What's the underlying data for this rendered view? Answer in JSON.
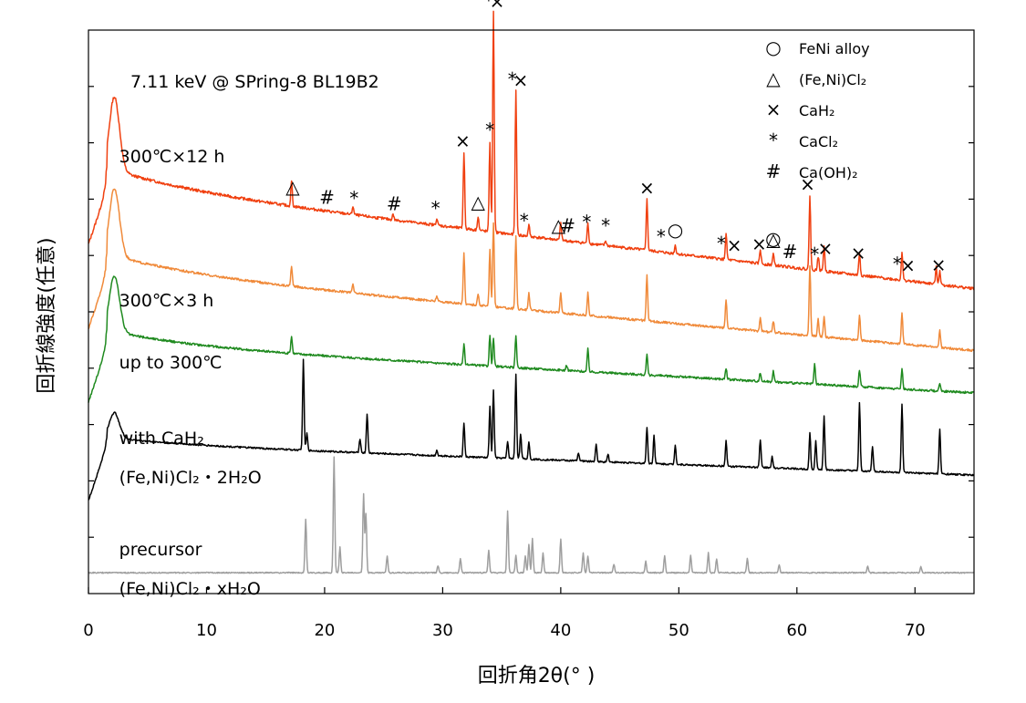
{
  "chart_data": {
    "type": "line",
    "source_note": "7.11 keV @ SPring-8 BL19B2",
    "xlabel": "回折角2θ(° )",
    "ylabel": "回折線強度(任意)",
    "xlim": [
      0,
      75
    ],
    "xticks": [
      0,
      10,
      20,
      30,
      40,
      50,
      60,
      70
    ],
    "yticks_unlabeled": 9,
    "grid": false,
    "legend": [
      {
        "symbol": "○",
        "label": "FeNi alloy"
      },
      {
        "symbol": "△",
        "label": "(Fe,Ni)Cl₂"
      },
      {
        "symbol": "×",
        "label": "CaH₂"
      },
      {
        "symbol": "*",
        "label": "CaCl₂"
      },
      {
        "symbol": "#",
        "label": "Ca(OH)₂"
      }
    ],
    "legend_position": "top-right",
    "series": [
      {
        "label_lines": [
          "300℃×12 h"
        ],
        "color": "#f04010",
        "baseline": 7.2,
        "slope": 0.0245,
        "hump": 1.3,
        "noise": 0.05,
        "peaks": [
          [
            17.2,
            0.45
          ],
          [
            22.4,
            0.15
          ],
          [
            25.8,
            0.1
          ],
          [
            29.5,
            0.12
          ],
          [
            31.8,
            1.35
          ],
          [
            33.0,
            0.25
          ],
          [
            34.0,
            1.6
          ],
          [
            34.3,
            3.9
          ],
          [
            36.2,
            2.55
          ],
          [
            37.3,
            0.2
          ],
          [
            40.0,
            0.3
          ],
          [
            42.3,
            0.35
          ],
          [
            43.8,
            0.08
          ],
          [
            47.3,
            0.9
          ],
          [
            49.7,
            0.15
          ],
          [
            54.0,
            0.45
          ],
          [
            56.9,
            0.25
          ],
          [
            58.0,
            0.2
          ],
          [
            61.1,
            1.3
          ],
          [
            61.8,
            0.25
          ],
          [
            62.3,
            0.45
          ],
          [
            65.3,
            0.4
          ],
          [
            68.9,
            0.5
          ],
          [
            71.8,
            0.3
          ],
          [
            72.1,
            0.25
          ]
        ]
      },
      {
        "label_lines": [
          "300℃×3 h"
        ],
        "color": "#f08a3a",
        "baseline": 5.7,
        "slope": 0.019,
        "hump": 1.2,
        "noise": 0.04,
        "peaks": [
          [
            17.2,
            0.35
          ],
          [
            22.4,
            0.15
          ],
          [
            29.5,
            0.1
          ],
          [
            31.8,
            0.9
          ],
          [
            33.0,
            0.2
          ],
          [
            34.0,
            1.0
          ],
          [
            34.3,
            1.5
          ],
          [
            36.2,
            1.3
          ],
          [
            37.3,
            0.3
          ],
          [
            40.0,
            0.35
          ],
          [
            42.3,
            0.4
          ],
          [
            47.3,
            0.8
          ],
          [
            54.0,
            0.5
          ],
          [
            56.9,
            0.25
          ],
          [
            58.0,
            0.2
          ],
          [
            61.1,
            1.25
          ],
          [
            61.8,
            0.3
          ],
          [
            62.3,
            0.35
          ],
          [
            65.3,
            0.45
          ],
          [
            68.9,
            0.55
          ],
          [
            72.1,
            0.3
          ]
        ]
      },
      {
        "label_lines": [
          "up to 300℃"
        ],
        "color": "#1f8a1f",
        "baseline": 4.4,
        "slope": 0.0115,
        "hump": 1.0,
        "noise": 0.04,
        "peaks": [
          [
            17.2,
            0.3
          ],
          [
            31.8,
            0.35
          ],
          [
            34.0,
            0.55
          ],
          [
            34.3,
            0.5
          ],
          [
            36.2,
            0.55
          ],
          [
            40.5,
            0.1
          ],
          [
            42.3,
            0.4
          ],
          [
            47.3,
            0.35
          ],
          [
            54.0,
            0.2
          ],
          [
            56.9,
            0.15
          ],
          [
            58.0,
            0.2
          ],
          [
            61.5,
            0.35
          ],
          [
            65.3,
            0.3
          ],
          [
            68.9,
            0.35
          ],
          [
            72.1,
            0.15
          ]
        ]
      },
      {
        "label_lines": [
          "with CaH₂",
          "(Fe,Ni)Cl₂・2H₂O"
        ],
        "color": "#000000",
        "baseline": 2.65,
        "slope": 0.0075,
        "hump": 0.45,
        "noise": 0.03,
        "peaks": [
          [
            18.2,
            1.6
          ],
          [
            18.5,
            0.3
          ],
          [
            23.0,
            0.25
          ],
          [
            23.6,
            0.7
          ],
          [
            29.5,
            0.1
          ],
          [
            31.8,
            0.6
          ],
          [
            34.0,
            0.9
          ],
          [
            34.3,
            1.2
          ],
          [
            35.5,
            0.3
          ],
          [
            36.2,
            1.5
          ],
          [
            36.6,
            0.45
          ],
          [
            37.3,
            0.3
          ],
          [
            41.5,
            0.15
          ],
          [
            43.0,
            0.3
          ],
          [
            44.0,
            0.15
          ],
          [
            47.3,
            0.65
          ],
          [
            47.9,
            0.5
          ],
          [
            49.7,
            0.35
          ],
          [
            54.0,
            0.45
          ],
          [
            56.9,
            0.5
          ],
          [
            57.9,
            0.2
          ],
          [
            61.1,
            0.65
          ],
          [
            61.6,
            0.5
          ],
          [
            62.3,
            0.95
          ],
          [
            65.3,
            1.2
          ],
          [
            66.4,
            0.45
          ],
          [
            68.9,
            1.2
          ],
          [
            72.1,
            0.8
          ]
        ]
      },
      {
        "label_lines": [
          "precursor",
          "(Fe,Ni)Cl₂・xH₂O"
        ],
        "color": "#9e9e9e",
        "baseline": 0.37,
        "slope": 0.0,
        "hump": 0.0,
        "noise": 0.02,
        "peaks": [
          [
            18.4,
            0.95
          ],
          [
            20.8,
            2.05
          ],
          [
            21.3,
            0.45
          ],
          [
            23.3,
            1.4
          ],
          [
            23.5,
            1.05
          ],
          [
            25.3,
            0.3
          ],
          [
            29.6,
            0.12
          ],
          [
            31.5,
            0.25
          ],
          [
            33.9,
            0.4
          ],
          [
            35.5,
            1.1
          ],
          [
            36.2,
            0.3
          ],
          [
            37.0,
            0.3
          ],
          [
            37.3,
            0.5
          ],
          [
            37.6,
            0.6
          ],
          [
            38.5,
            0.35
          ],
          [
            40.0,
            0.6
          ],
          [
            41.9,
            0.35
          ],
          [
            42.3,
            0.3
          ],
          [
            44.5,
            0.15
          ],
          [
            47.2,
            0.2
          ],
          [
            48.8,
            0.3
          ],
          [
            51.0,
            0.3
          ],
          [
            52.5,
            0.35
          ],
          [
            53.2,
            0.25
          ],
          [
            55.8,
            0.25
          ],
          [
            58.5,
            0.15
          ],
          [
            66.0,
            0.12
          ],
          [
            70.5,
            0.1
          ]
        ]
      }
    ],
    "peak_markers": [
      {
        "x": 17.3,
        "symbol": "△",
        "trace": 0
      },
      {
        "x": 20.2,
        "symbol": "#",
        "trace": 0
      },
      {
        "x": 22.5,
        "symbol": "*",
        "trace": 0
      },
      {
        "x": 25.9,
        "symbol": "#",
        "trace": 0
      },
      {
        "x": 29.4,
        "symbol": "*",
        "trace": 0
      },
      {
        "x": 31.7,
        "symbol": "×",
        "trace": 0
      },
      {
        "x": 33.0,
        "symbol": "△",
        "trace": 0
      },
      {
        "x": 34.0,
        "symbol": "*",
        "trace": 0
      },
      {
        "x": 33.9,
        "symbol": "*",
        "trace": 0
      },
      {
        "x": 34.6,
        "symbol": "×",
        "trace": 0
      },
      {
        "x": 35.9,
        "symbol": "*",
        "trace": 0
      },
      {
        "x": 36.6,
        "symbol": "×",
        "trace": 0
      },
      {
        "x": 36.9,
        "symbol": "*",
        "trace": 0
      },
      {
        "x": 39.8,
        "symbol": "△",
        "trace": 0
      },
      {
        "x": 40.6,
        "symbol": "#",
        "trace": 0
      },
      {
        "x": 42.2,
        "symbol": "*",
        "trace": 0
      },
      {
        "x": 43.8,
        "symbol": "*",
        "trace": 0
      },
      {
        "x": 47.3,
        "symbol": "×",
        "trace": 0
      },
      {
        "x": 48.5,
        "symbol": "*",
        "trace": 0
      },
      {
        "x": 49.7,
        "symbol": "○",
        "trace": 0
      },
      {
        "x": 53.6,
        "symbol": "*",
        "trace": 0
      },
      {
        "x": 54.7,
        "symbol": "×",
        "trace": 0
      },
      {
        "x": 56.8,
        "symbol": "×",
        "trace": 0
      },
      {
        "x": 58.0,
        "symbol": "△",
        "trace": 0
      },
      {
        "x": 58.0,
        "symbol": "○",
        "trace": 0
      },
      {
        "x": 59.4,
        "symbol": "#",
        "trace": 0
      },
      {
        "x": 60.9,
        "symbol": "×",
        "trace": 0
      },
      {
        "x": 61.5,
        "symbol": "*",
        "trace": 0
      },
      {
        "x": 62.4,
        "symbol": "×",
        "trace": 0
      },
      {
        "x": 65.2,
        "symbol": "×",
        "trace": 0
      },
      {
        "x": 68.5,
        "symbol": "*",
        "trace": 0
      },
      {
        "x": 69.4,
        "symbol": "×",
        "trace": 0
      },
      {
        "x": 72.0,
        "symbol": "×",
        "trace": 0
      }
    ]
  }
}
